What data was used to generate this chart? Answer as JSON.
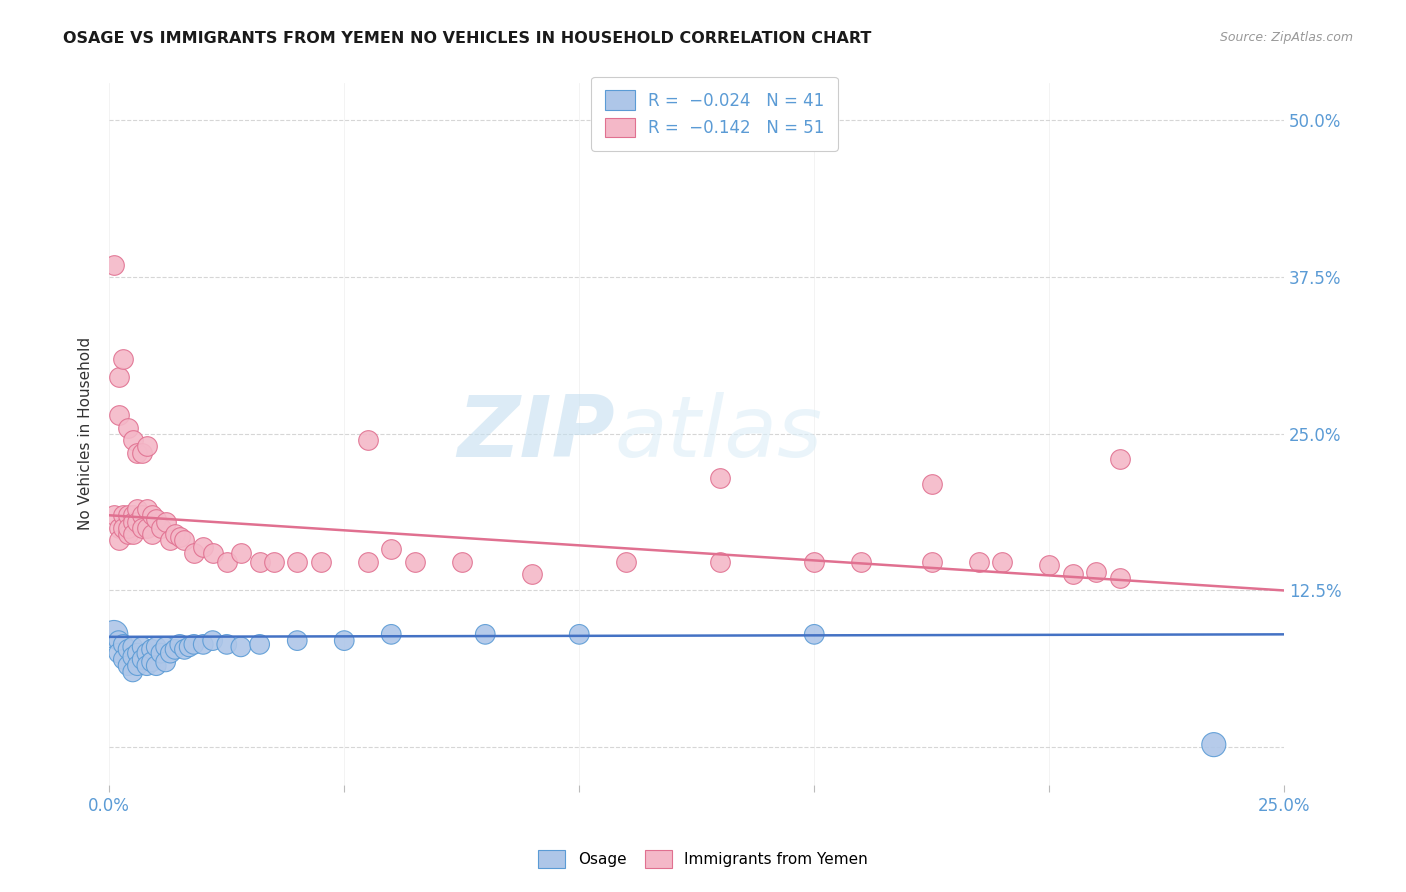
{
  "title": "OSAGE VS IMMIGRANTS FROM YEMEN NO VEHICLES IN HOUSEHOLD CORRELATION CHART",
  "source": "Source: ZipAtlas.com",
  "ylabel": "No Vehicles in Household",
  "xlim": [
    0.0,
    0.25
  ],
  "ylim": [
    -0.03,
    0.53
  ],
  "color_osage_fill": "#aec6e8",
  "color_osage_edge": "#5b9bd5",
  "color_osage_line": "#4472c4",
  "color_yemen_fill": "#f4b8c8",
  "color_yemen_edge": "#e07090",
  "color_yemen_line": "#e07090",
  "color_tick": "#5b9bd5",
  "legend_line1": "R =  −0.024   N = 41",
  "legend_line2": "R =  −0.142   N = 51",
  "watermark_zip": "ZIP",
  "watermark_atlas": "atlas",
  "osage_x": [
    0.001,
    0.002,
    0.002,
    0.003,
    0.003,
    0.004,
    0.004,
    0.005,
    0.005,
    0.005,
    0.006,
    0.006,
    0.007,
    0.007,
    0.008,
    0.008,
    0.009,
    0.009,
    0.01,
    0.01,
    0.011,
    0.012,
    0.012,
    0.013,
    0.014,
    0.015,
    0.016,
    0.017,
    0.018,
    0.02,
    0.022,
    0.025,
    0.028,
    0.032,
    0.04,
    0.05,
    0.06,
    0.08,
    0.1,
    0.15,
    0.235
  ],
  "osage_y": [
    0.09,
    0.085,
    0.075,
    0.082,
    0.07,
    0.078,
    0.065,
    0.08,
    0.072,
    0.06,
    0.075,
    0.065,
    0.08,
    0.07,
    0.075,
    0.065,
    0.078,
    0.068,
    0.08,
    0.065,
    0.075,
    0.08,
    0.068,
    0.075,
    0.078,
    0.082,
    0.078,
    0.08,
    0.082,
    0.082,
    0.085,
    0.082,
    0.08,
    0.082,
    0.085,
    0.085,
    0.09,
    0.09,
    0.09,
    0.09,
    0.002
  ],
  "osage_sizes": [
    400,
    200,
    200,
    200,
    200,
    200,
    200,
    200,
    200,
    200,
    200,
    200,
    200,
    200,
    200,
    200,
    200,
    200,
    200,
    200,
    200,
    200,
    200,
    200,
    200,
    200,
    200,
    200,
    200,
    200,
    200,
    200,
    200,
    200,
    200,
    200,
    200,
    200,
    200,
    200,
    300
  ],
  "yemen_x": [
    0.001,
    0.002,
    0.002,
    0.003,
    0.003,
    0.004,
    0.004,
    0.004,
    0.005,
    0.005,
    0.005,
    0.006,
    0.006,
    0.007,
    0.007,
    0.008,
    0.008,
    0.009,
    0.009,
    0.01,
    0.011,
    0.012,
    0.013,
    0.014,
    0.015,
    0.016,
    0.018,
    0.02,
    0.022,
    0.025,
    0.028,
    0.032,
    0.035,
    0.04,
    0.045,
    0.055,
    0.06,
    0.065,
    0.075,
    0.09,
    0.11,
    0.13,
    0.15,
    0.16,
    0.175,
    0.185,
    0.19,
    0.2,
    0.205,
    0.21,
    0.215
  ],
  "yemen_y": [
    0.185,
    0.175,
    0.165,
    0.185,
    0.175,
    0.185,
    0.17,
    0.175,
    0.185,
    0.18,
    0.17,
    0.19,
    0.18,
    0.185,
    0.175,
    0.19,
    0.175,
    0.185,
    0.17,
    0.182,
    0.175,
    0.18,
    0.165,
    0.17,
    0.168,
    0.165,
    0.155,
    0.16,
    0.155,
    0.148,
    0.155,
    0.148,
    0.148,
    0.148,
    0.148,
    0.148,
    0.158,
    0.148,
    0.148,
    0.138,
    0.148,
    0.148,
    0.148,
    0.148,
    0.148,
    0.148,
    0.148,
    0.145,
    0.138,
    0.14,
    0.135
  ],
  "yemen_extra_high": [
    [
      0.001,
      0.385
    ],
    [
      0.002,
      0.295
    ],
    [
      0.002,
      0.265
    ],
    [
      0.003,
      0.31
    ],
    [
      0.004,
      0.255
    ],
    [
      0.005,
      0.245
    ],
    [
      0.006,
      0.235
    ],
    [
      0.007,
      0.235
    ],
    [
      0.008,
      0.24
    ],
    [
      0.055,
      0.245
    ],
    [
      0.13,
      0.215
    ],
    [
      0.175,
      0.21
    ],
    [
      0.215,
      0.23
    ]
  ],
  "yemen_sizes": [
    200,
    200,
    200,
    200,
    200,
    200,
    200,
    200,
    200,
    200,
    200,
    200,
    200,
    200,
    200,
    200,
    200,
    200,
    200,
    200,
    200,
    200,
    200,
    200,
    200,
    200,
    200,
    200,
    200,
    200,
    200,
    200,
    200,
    200,
    200,
    200,
    200,
    200,
    200,
    200,
    200,
    200,
    200,
    200,
    200,
    200,
    200,
    200,
    200,
    200,
    200
  ]
}
